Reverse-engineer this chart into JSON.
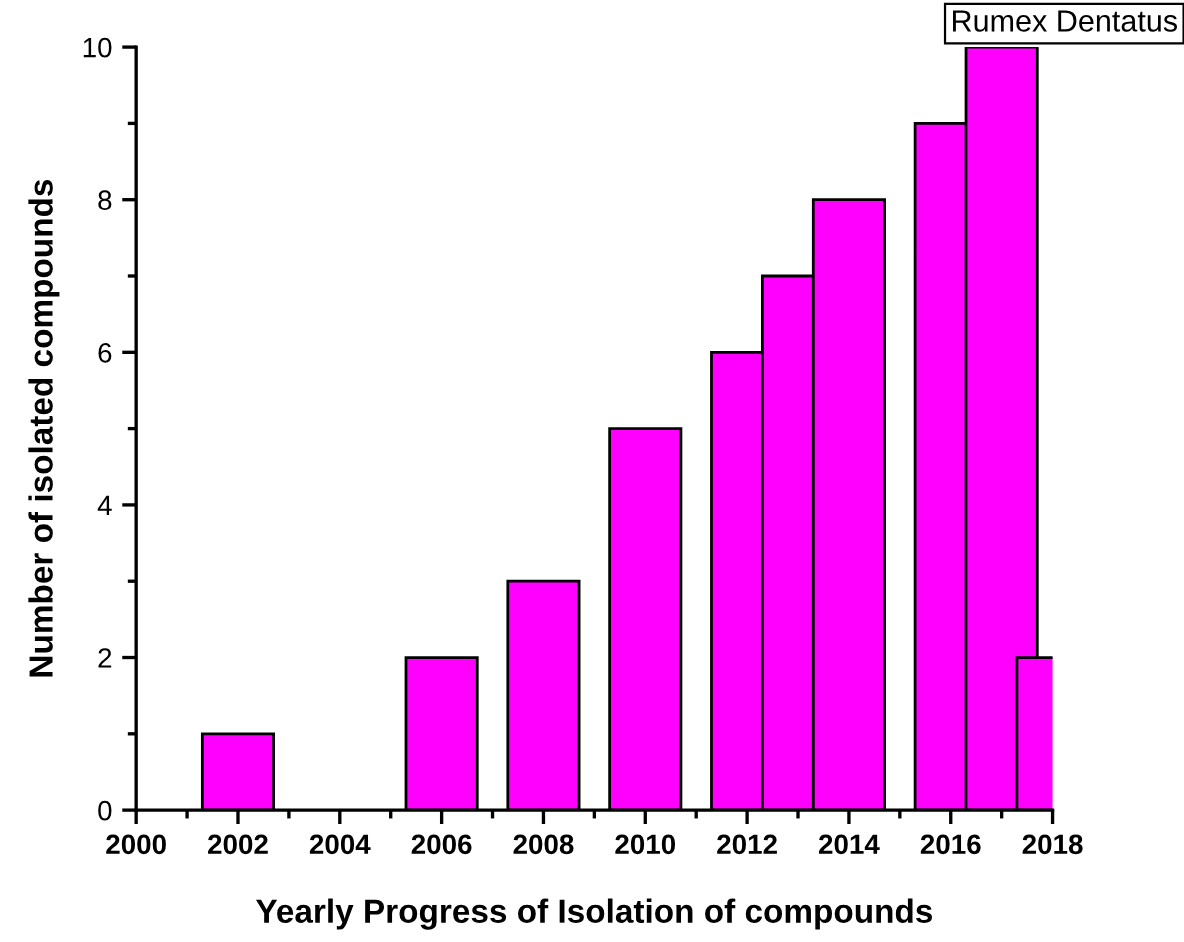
{
  "chart_data": {
    "type": "bar",
    "x": [
      2002,
      2006,
      2008,
      2010,
      2012,
      2013,
      2014,
      2016,
      2017,
      2018
    ],
    "values": [
      1,
      2,
      3,
      5,
      6,
      7,
      8,
      9,
      10,
      2
    ],
    "color": "#ff00ff",
    "xlabel": "Yearly Progress of Isolation of compounds",
    "ylabel": "Number of isolated compounds",
    "annotations": [
      "Rumex Dentatus"
    ],
    "xlim": [
      2000,
      2018
    ],
    "xticks": [
      2000,
      2002,
      2004,
      2006,
      2008,
      2010,
      2012,
      2014,
      2016,
      2018
    ],
    "ylim": [
      0,
      10
    ],
    "yticks": [
      0,
      2,
      4,
      6,
      8,
      10
    ],
    "grid": false,
    "legend": false
  }
}
